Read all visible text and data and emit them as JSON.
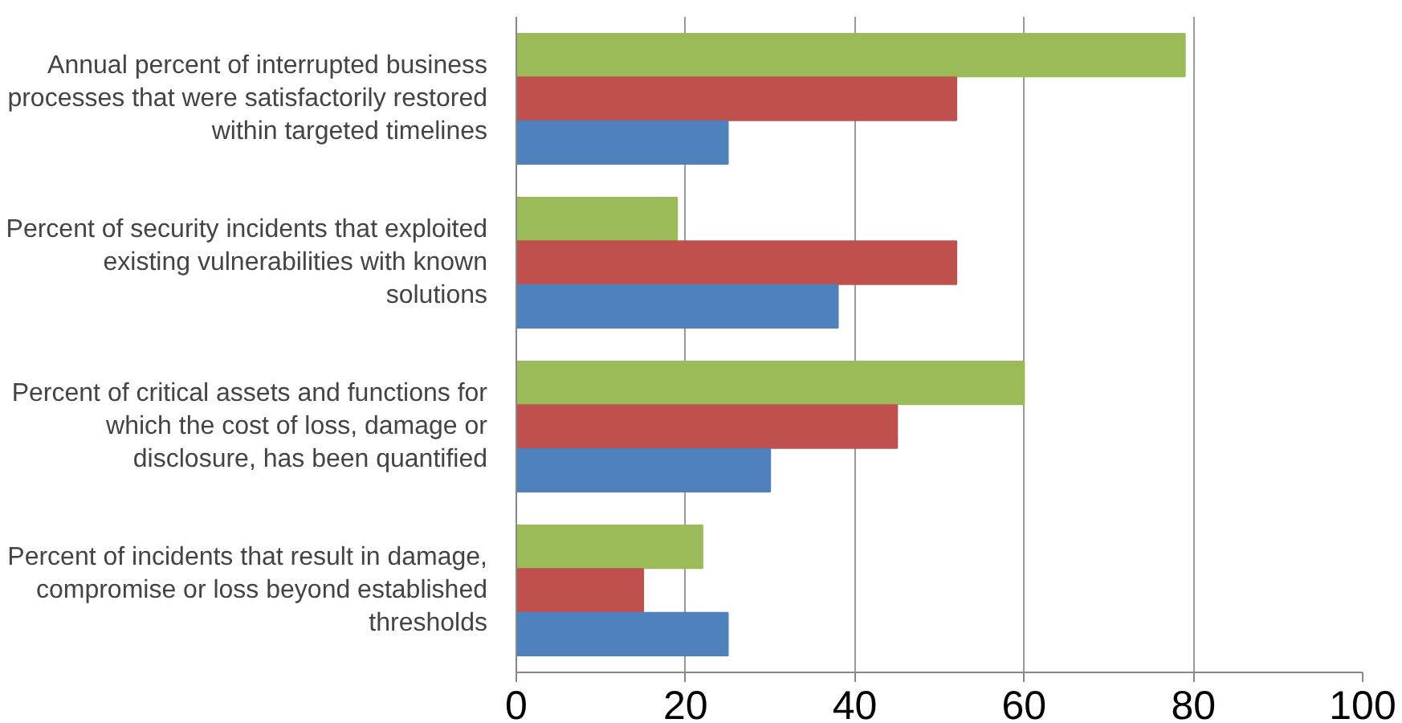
{
  "chart_data": {
    "type": "bar",
    "orientation": "horizontal",
    "categories": [
      "Annual percent of interrupted business processes that were satisfactorily restored within targeted timelines",
      "Percent of security incidents that exploited existing vulnerabilities with known solutions",
      "Percent of critical assets and functions for which the cost of loss, damage or disclosure, has been quantified",
      "Percent of incidents that result in damage, compromise or loss beyond established thresholds"
    ],
    "series": [
      {
        "color": "#9bbb59",
        "values": [
          79,
          19,
          60,
          22
        ]
      },
      {
        "color": "#c0504d",
        "values": [
          52,
          52,
          45,
          15
        ]
      },
      {
        "color": "#4f81bd",
        "values": [
          25,
          38,
          30,
          25
        ]
      }
    ],
    "xlim": [
      0,
      100
    ],
    "xticks": [
      0,
      20,
      40,
      60,
      80,
      100
    ],
    "grid": "x"
  }
}
